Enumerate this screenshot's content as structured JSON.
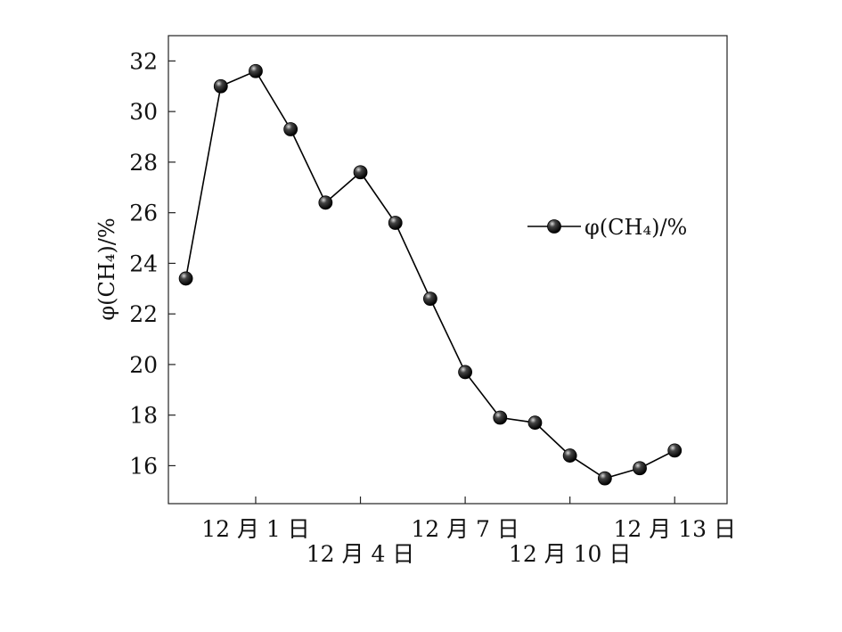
{
  "chart_data": {
    "type": "line",
    "title": "",
    "xlabel": "",
    "ylabel": "φ(CH₄)/%",
    "ylim": [
      14.5,
      33
    ],
    "y_ticks": [
      16,
      18,
      20,
      22,
      24,
      26,
      28,
      30,
      32
    ],
    "grid": false,
    "legend_position": "right",
    "x_ticks": [
      {
        "label": "12 月 1 日",
        "x": 3
      },
      {
        "label": "12 月 4 日",
        "x": 6
      },
      {
        "label": "12 月 7 日",
        "x": 9
      },
      {
        "label": "12 月 10 日",
        "x": 12
      },
      {
        "label": "12 月 13 日",
        "x": 15
      }
    ],
    "series": [
      {
        "name": "φ(CH₄)/%",
        "color": "#000000",
        "x": [
          1,
          2,
          3,
          4,
          5,
          6,
          7,
          8,
          9,
          10,
          11,
          12,
          13,
          14,
          15
        ],
        "values": [
          23.4,
          31.0,
          31.6,
          29.3,
          26.4,
          27.6,
          25.6,
          22.6,
          19.7,
          17.9,
          17.7,
          16.4,
          15.5,
          15.9,
          16.6
        ]
      }
    ]
  }
}
